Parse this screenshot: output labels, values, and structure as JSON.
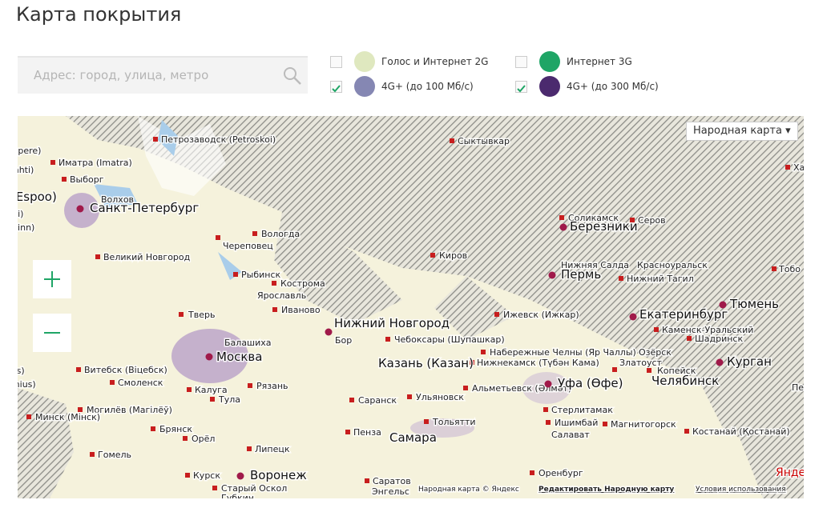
{
  "header": {
    "title": "Карта покрытия"
  },
  "search": {
    "placeholder": "Адрес: город, улица, метро"
  },
  "legend": [
    {
      "label": "Голос и Интернет 2G",
      "checked": false,
      "color": "#dfe8bf"
    },
    {
      "label": "Интернет 3G",
      "checked": false,
      "color": "#1fa566"
    },
    {
      "label": "4G+ (до 100 Мб/с)",
      "checked": true,
      "color": "#8587b3"
    },
    {
      "label": "4G+ (до 300 Мб/с)",
      "checked": true,
      "color": "#4b2a6e"
    }
  ],
  "map": {
    "type_button": "Народная карта",
    "cities": [
      "Tampere)",
      "Петрозаводск (Petroskoi)",
      "Сыктывкар",
      "Иматра (Imatra)",
      "i (Lahti)",
      "Выборг",
      "Волхов",
      "o (Espoo)",
      "Санкт-Петербург",
      "sinki)",
      "(Tallinn)",
      "Череповец",
      "Вологда",
      "Великий Новгород",
      "Рыбинск",
      "Кострома",
      "Ярославль",
      "Иваново",
      "Тверь",
      "Киров",
      "Соликамск",
      "Серов",
      "Березники",
      "Нижняя Салда",
      "Красноуральск",
      "Пермь",
      "Нижний Тагил",
      "Тобо",
      "Ижевск (Ижкар)",
      "Екатеринбург",
      "Тюмень",
      "Каменск-Уральский",
      "Шадринск",
      "Нижний Новгород",
      "Бор",
      "Балашиха",
      "Москва",
      "Чебоксары (Шупашкар)",
      "Набережные Челны (Яр Чаллы)",
      "Озёрск",
      "Нижнекамск (Түбән Кама)",
      "Казань (Казан)",
      "Златоуст",
      "Копейск",
      "Курган",
      "Челябинск",
      "Витебск (Віцебск)",
      "unas)",
      "Смоленск",
      "Рязань",
      "Калуга",
      "Тула",
      "Альметьевск (Әлмәт)",
      "Уфа (Өфе)",
      "Пе",
      "(Vilnius)",
      "Саранск",
      "Ульяновск",
      "Могилёв (Магілёў)",
      "Минск (Мінск)",
      "Стерлитамак",
      "Тольятти",
      "Ишимбай",
      "Магнитогорск",
      "Салават",
      "Брянск",
      "Пенза",
      "Самара",
      "Костанай (Қостанай)",
      "Орёл",
      "Липецк",
      "Гомель",
      "Курск",
      "Воронеж",
      "Оренбург",
      "Старый Оскол",
      "Саратов",
      "Губкин",
      "Энгельс",
      "Ха"
    ],
    "attribution": {
      "copyright": "Народная карта © Яндекс",
      "edit": "Редактировать Народную карту",
      "terms": "Условия использования",
      "logo": "Яндекс"
    }
  }
}
